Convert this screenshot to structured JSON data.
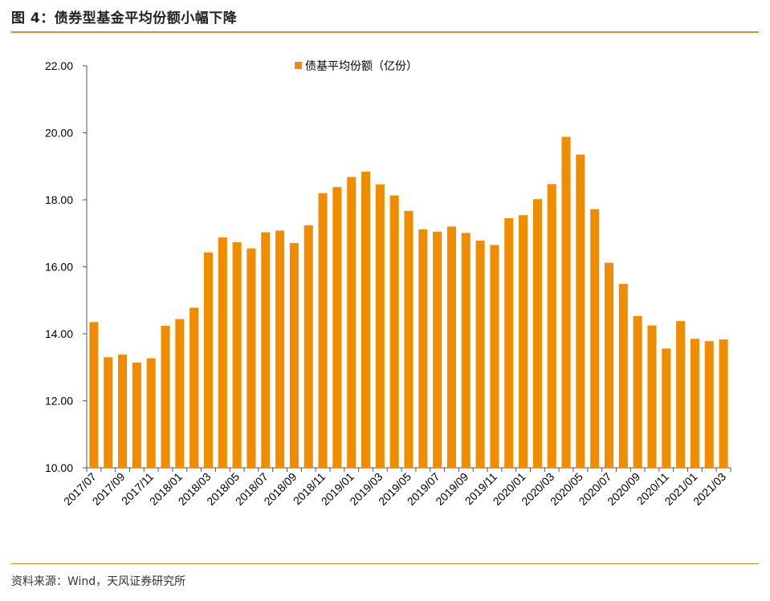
{
  "figure": {
    "title": "图 4：债券型基金平均份额小幅下降",
    "source": "资料来源：Wind，天风证券研究所"
  },
  "colors": {
    "bar": "#f08c00",
    "accent": "#e8872a"
  },
  "chart_data": {
    "type": "bar",
    "title": "",
    "xlabel": "",
    "ylabel": "",
    "ylim": [
      10,
      22
    ],
    "yticks": [
      "10.00",
      "12.00",
      "14.00",
      "16.00",
      "18.00",
      "20.00",
      "22.00"
    ],
    "legend": {
      "position": "top-center"
    },
    "grid": false,
    "categories": [
      "2017/07",
      "2017/08",
      "2017/09",
      "2017/10",
      "2017/11",
      "2017/12",
      "2018/01",
      "2018/02",
      "2018/03",
      "2018/04",
      "2018/05",
      "2018/06",
      "2018/07",
      "2018/08",
      "2018/09",
      "2018/10",
      "2018/11",
      "2018/12",
      "2019/01",
      "2019/02",
      "2019/03",
      "2019/04",
      "2019/05",
      "2019/06",
      "2019/07",
      "2019/08",
      "2019/09",
      "2019/10",
      "2019/11",
      "2019/12",
      "2020/01",
      "2020/02",
      "2020/03",
      "2020/04",
      "2020/05",
      "2020/06",
      "2020/07",
      "2020/08",
      "2020/09",
      "2020/10",
      "2020/11",
      "2020/12",
      "2021/01",
      "2021/02",
      "2021/03"
    ],
    "xtick_labels": [
      "2017/07",
      "2017/09",
      "2017/11",
      "2018/01",
      "2018/03",
      "2018/05",
      "2018/07",
      "2018/09",
      "2018/11",
      "2019/01",
      "2019/03",
      "2019/05",
      "2019/07",
      "2019/09",
      "2019/11",
      "2020/01",
      "2020/03",
      "2020/05",
      "2020/07",
      "2020/09",
      "2020/11",
      "2021/01",
      "2021/03"
    ],
    "series": [
      {
        "name": "债基平均份额（亿份）",
        "values": [
          14.35,
          13.3,
          13.38,
          13.14,
          13.27,
          14.24,
          14.44,
          14.78,
          16.43,
          16.88,
          16.73,
          16.55,
          17.03,
          17.08,
          16.71,
          17.24,
          18.2,
          18.38,
          18.68,
          18.84,
          18.46,
          18.13,
          17.67,
          17.12,
          17.05,
          17.2,
          17.01,
          16.78,
          16.65,
          17.45,
          17.54,
          18.02,
          18.47,
          19.88,
          19.35,
          17.72,
          16.12,
          15.49,
          14.53,
          14.25,
          13.56,
          14.38,
          13.85,
          13.78,
          13.83
        ]
      }
    ]
  }
}
